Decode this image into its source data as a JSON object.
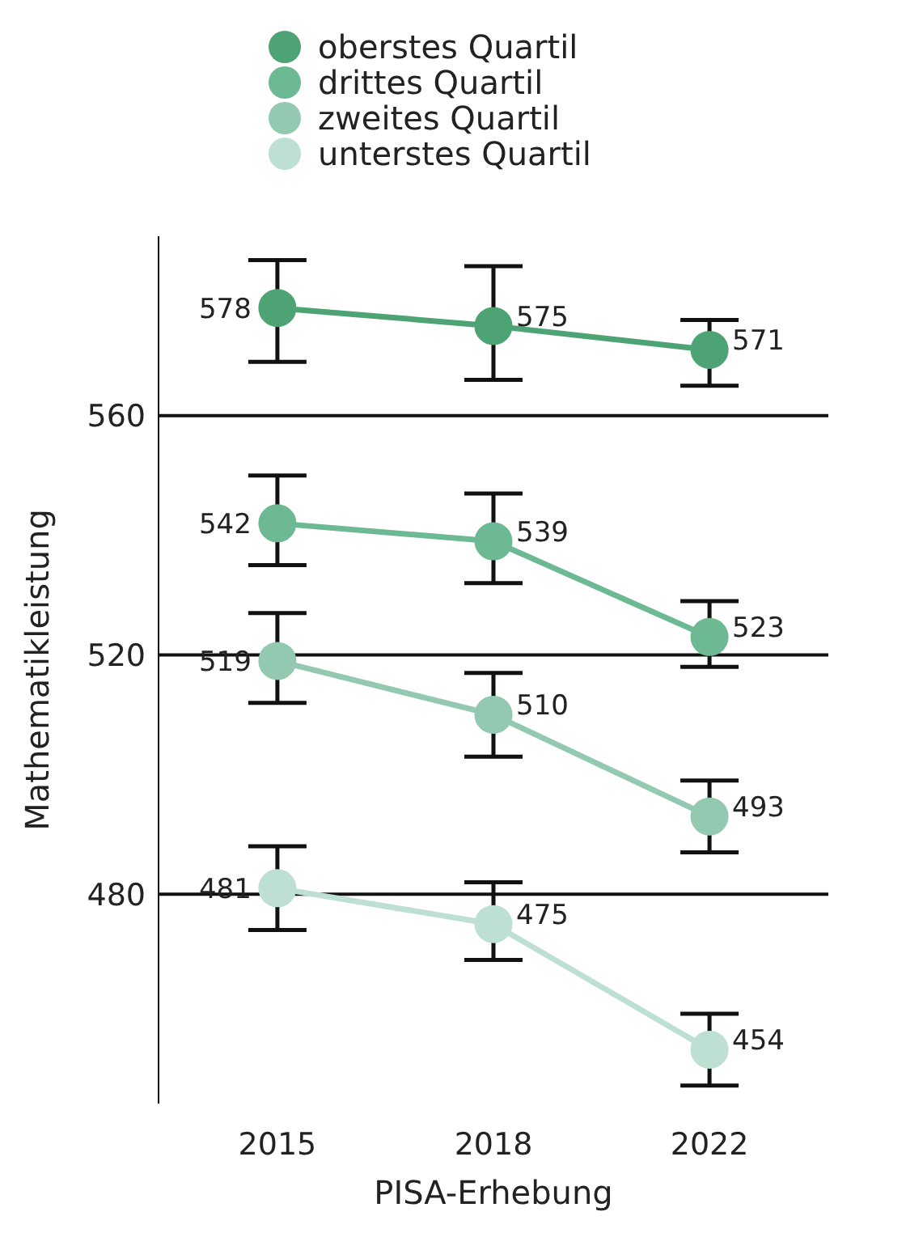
{
  "chart_data": {
    "type": "line",
    "xlabel": "PISA-Erhebung",
    "ylabel": "Mathematikleistung",
    "categories": [
      "2015",
      "2018",
      "2022"
    ],
    "series": [
      {
        "name": "oberstes Quartil",
        "color": "#4ea374",
        "values": [
          578,
          575,
          571
        ],
        "errors": [
          [
            569,
            586
          ],
          [
            566,
            585
          ],
          [
            565,
            576
          ]
        ]
      },
      {
        "name": "drittes Quartil",
        "color": "#6cb994",
        "values": [
          542,
          539,
          523
        ],
        "errors": [
          [
            535,
            550
          ],
          [
            532,
            547
          ],
          [
            518,
            529
          ]
        ]
      },
      {
        "name": "zweites Quartil",
        "color": "#93c9b1",
        "values": [
          519,
          510,
          493
        ],
        "errors": [
          [
            512,
            527
          ],
          [
            503,
            517
          ],
          [
            487,
            499
          ]
        ]
      },
      {
        "name": "unterstes Quartil",
        "color": "#bde0d2",
        "values": [
          481,
          475,
          454
        ],
        "errors": [
          [
            474,
            488
          ],
          [
            469,
            482
          ],
          [
            448,
            460
          ]
        ]
      }
    ],
    "ylim": [
      445,
      590
    ],
    "yticks": [
      480,
      520,
      560
    ],
    "grid": "y",
    "legend": "top",
    "marker": "circle",
    "line_style": "solid",
    "data_labels": true
  }
}
